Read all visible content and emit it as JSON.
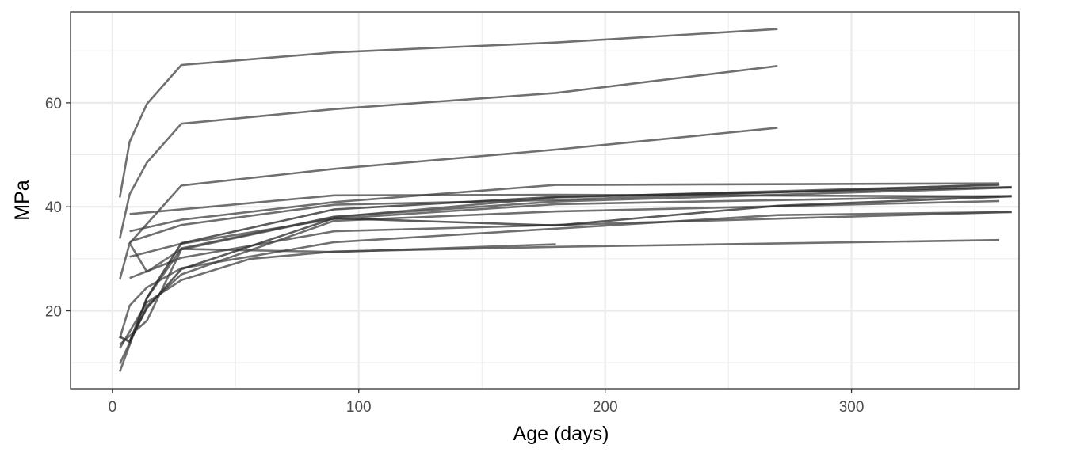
{
  "chart_data": {
    "type": "line",
    "title": "",
    "xlabel": "Age (days)",
    "ylabel": "MPa",
    "xlim": [
      -17,
      368
    ],
    "ylim": [
      5,
      77.5
    ],
    "x_ticks": [
      0,
      100,
      200,
      300
    ],
    "x_minor_ticks": [
      50,
      150,
      250,
      350
    ],
    "y_ticks": [
      20,
      40,
      60
    ],
    "y_minor_ticks": [
      10,
      30,
      50,
      70
    ],
    "grid": true,
    "legend": "none",
    "colors": {
      "line": "#404040",
      "line_dark": "#262626",
      "grid": "#ebebeb",
      "panel_border": "#333333",
      "tick": "#333333"
    },
    "series": [
      {
        "x": [
          3,
          7,
          14,
          28,
          90,
          180,
          270
        ],
        "y": [
          41.8,
          52.5,
          59.8,
          67.3,
          69.7,
          71.6,
          74.2
        ]
      },
      {
        "x": [
          3,
          7,
          14,
          28,
          90,
          180,
          270
        ],
        "y": [
          33.9,
          42.4,
          48.5,
          56.0,
          58.8,
          61.9,
          67.1
        ]
      },
      {
        "x": [
          7,
          28,
          90,
          180,
          270
        ],
        "y": [
          33.0,
          44.1,
          47.3,
          51.0,
          55.2
        ]
      },
      {
        "x": [
          7,
          90,
          180,
          360
        ],
        "y": [
          38.6,
          42.2,
          42.3,
          42.0
        ]
      },
      {
        "x": [
          7,
          28,
          90,
          180,
          360
        ],
        "y": [
          35.3,
          37.5,
          40.9,
          44.2,
          44.5
        ]
      },
      {
        "x": [
          7,
          28,
          90,
          180,
          360
        ],
        "y": [
          33.3,
          36.5,
          40.4,
          41.3,
          44.3
        ]
      },
      {
        "x": [
          7,
          28,
          90,
          180,
          365
        ],
        "y": [
          30.4,
          32.9,
          37.7,
          40.5,
          42.1
        ]
      },
      {
        "x": [
          7,
          28,
          90,
          180,
          365
        ],
        "y": [
          26.3,
          30.2,
          35.3,
          36.5,
          39.0
        ]
      },
      {
        "x": [
          3,
          14,
          28,
          56,
          90,
          180,
          360
        ],
        "y": [
          12.8,
          21.6,
          25.9,
          30.0,
          31.4,
          32.3,
          33.6
        ]
      },
      {
        "x": [
          3,
          7,
          14,
          28,
          90,
          180
        ],
        "y": [
          26.0,
          33.0,
          27.5,
          31.9,
          31.3,
          32.8
        ]
      },
      {
        "x": [
          3,
          7,
          14,
          28,
          90,
          270,
          365
        ],
        "y": [
          14.7,
          21.0,
          24.5,
          28.2,
          33.2,
          38.4,
          39.0
        ]
      },
      {
        "x": [
          3,
          14,
          28,
          90,
          180,
          360
        ],
        "y": [
          9.8,
          20.9,
          27.0,
          37.3,
          39.1,
          41.1
        ]
      },
      {
        "x": [
          3,
          14,
          28,
          90,
          180,
          365
        ],
        "y": [
          8.3,
          22.4,
          32.0,
          38.1,
          41.0,
          43.7
        ]
      },
      {
        "x": [
          3,
          14,
          28,
          90,
          180,
          360
        ],
        "y": [
          13.5,
          18.1,
          31.8,
          38.0,
          41.8,
          44.2
        ]
      }
    ],
    "dark_series": [
      {
        "x": [
          3,
          7,
          14,
          28,
          90,
          180,
          365
        ],
        "y": [
          15.0,
          14.0,
          22.5,
          33.0,
          39.5,
          41.9,
          43.8
        ]
      },
      {
        "x": [
          7,
          14,
          28,
          90,
          180,
          270,
          365
        ],
        "y": [
          14.2,
          20.5,
          28.0,
          37.8,
          36.4,
          40.2,
          42.0
        ]
      }
    ]
  }
}
